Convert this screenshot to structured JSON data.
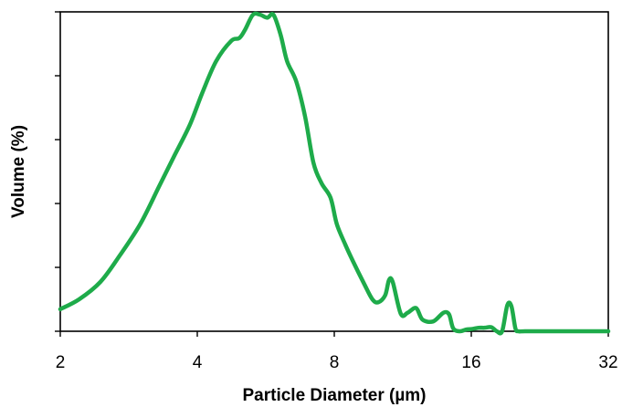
{
  "chart_data": {
    "type": "line",
    "title": "",
    "xlabel": "Particle Diameter (µm)",
    "ylabel": "Volume (%)",
    "x_scale": "log2",
    "xlim": [
      2,
      32
    ],
    "x_ticks": [
      2,
      4,
      8,
      16,
      32
    ],
    "x_tick_labels": [
      "2",
      "4",
      "8",
      "16",
      "32"
    ],
    "ylim": [
      0,
      5.5
    ],
    "y_tick_count": 6,
    "y_tick_labels_shown": false,
    "grid": false,
    "legend": false,
    "series": [
      {
        "color": "#1eab4a",
        "points": [
          [
            2.0,
            0.38
          ],
          [
            2.2,
            0.55
          ],
          [
            2.45,
            0.85
          ],
          [
            2.7,
            1.3
          ],
          [
            3.0,
            1.85
          ],
          [
            3.3,
            2.5
          ],
          [
            3.55,
            3.0
          ],
          [
            3.85,
            3.55
          ],
          [
            4.1,
            4.1
          ],
          [
            4.4,
            4.65
          ],
          [
            4.75,
            5.0
          ],
          [
            4.95,
            5.05
          ],
          [
            5.1,
            5.2
          ],
          [
            5.3,
            5.45
          ],
          [
            5.5,
            5.45
          ],
          [
            5.7,
            5.4
          ],
          [
            5.88,
            5.45
          ],
          [
            6.1,
            5.1
          ],
          [
            6.3,
            4.65
          ],
          [
            6.6,
            4.3
          ],
          [
            6.9,
            3.7
          ],
          [
            7.2,
            2.9
          ],
          [
            7.5,
            2.55
          ],
          [
            7.85,
            2.3
          ],
          [
            8.1,
            1.85
          ],
          [
            8.45,
            1.5
          ],
          [
            8.8,
            1.2
          ],
          [
            9.3,
            0.82
          ],
          [
            9.7,
            0.55
          ],
          [
            10.0,
            0.5
          ],
          [
            10.35,
            0.62
          ],
          [
            10.55,
            0.88
          ],
          [
            10.75,
            0.85
          ],
          [
            11.2,
            0.3
          ],
          [
            11.6,
            0.32
          ],
          [
            12.1,
            0.4
          ],
          [
            12.5,
            0.2
          ],
          [
            13.2,
            0.17
          ],
          [
            13.9,
            0.32
          ],
          [
            14.3,
            0.29
          ],
          [
            14.6,
            0.05
          ],
          [
            15.1,
            0.0
          ],
          [
            15.6,
            0.03
          ],
          [
            16.1,
            0.04
          ],
          [
            16.6,
            0.06
          ],
          [
            17.1,
            0.06
          ],
          [
            17.7,
            0.07
          ],
          [
            18.2,
            0.0
          ],
          [
            18.7,
            0.0
          ],
          [
            19.2,
            0.45
          ],
          [
            19.6,
            0.43
          ],
          [
            20.0,
            0.05
          ],
          [
            20.3,
            0.0
          ],
          [
            21.0,
            0.0
          ],
          [
            24.0,
            0.0
          ],
          [
            28.0,
            0.0
          ],
          [
            32.0,
            0.0
          ]
        ]
      }
    ]
  }
}
